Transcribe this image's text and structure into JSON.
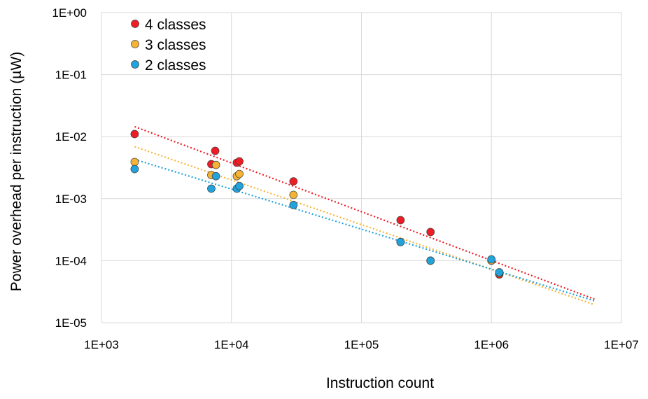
{
  "chart_data": {
    "type": "scatter",
    "title": "",
    "xlabel": "Instruction count",
    "ylabel": "Power overhead per instruction (µW)",
    "xscale": "log",
    "yscale": "log",
    "xlim": [
      1000,
      10000000
    ],
    "ylim": [
      1e-05,
      1
    ],
    "x_ticks": [
      1000,
      10000,
      100000,
      1000000,
      10000000
    ],
    "x_tick_labels": [
      "1E+03",
      "1E+04",
      "1E+05",
      "1E+06",
      "1E+07"
    ],
    "y_ticks": [
      1,
      0.1,
      0.01,
      0.001,
      0.0001,
      1e-05
    ],
    "y_tick_labels": [
      "1E+00",
      "1E-01",
      "1E-02",
      "1E-03",
      "1E-04",
      "1E-05"
    ],
    "grid": true,
    "legend_position": "top-left",
    "series": [
      {
        "name": "4 classes",
        "color": "#ee1c24",
        "points": [
          [
            1800,
            0.011
          ],
          [
            7000,
            0.0036
          ],
          [
            7500,
            0.0059
          ],
          [
            11000,
            0.0038
          ],
          [
            11500,
            0.004
          ],
          [
            30000,
            0.0019
          ],
          [
            200000,
            0.00045
          ],
          [
            340000,
            0.00029
          ],
          [
            1000000,
            0.0001
          ],
          [
            1150000,
            6e-05
          ]
        ],
        "trendline": {
          "type": "power",
          "x_range": [
            1800,
            6200000
          ],
          "y_range": [
            0.0145,
            2.4e-05
          ]
        }
      },
      {
        "name": "3 classes",
        "color": "#f5b335",
        "points": [
          [
            1800,
            0.0039
          ],
          [
            7000,
            0.0024
          ],
          [
            7600,
            0.0035
          ],
          [
            11000,
            0.0023
          ],
          [
            11500,
            0.0025
          ],
          [
            30000,
            0.00115
          ],
          [
            200000,
            0.0002
          ],
          [
            340000,
            0.0001
          ],
          [
            1000000,
            0.0001
          ],
          [
            1150000,
            6.3e-05
          ]
        ],
        "trendline": {
          "type": "power",
          "x_range": [
            1800,
            6200000
          ],
          "y_range": [
            0.0069,
            1.95e-05
          ]
        }
      },
      {
        "name": "2 classes",
        "color": "#21a3dc",
        "points": [
          [
            1800,
            0.003
          ],
          [
            7000,
            0.00145
          ],
          [
            7600,
            0.0023
          ],
          [
            11000,
            0.00145
          ],
          [
            11500,
            0.0016
          ],
          [
            30000,
            0.00079
          ],
          [
            200000,
            0.0002
          ],
          [
            340000,
            0.0001
          ],
          [
            1000000,
            0.000105
          ],
          [
            1150000,
            6.5e-05
          ]
        ],
        "trendline": {
          "type": "power",
          "x_range": [
            1800,
            6200000
          ],
          "y_range": [
            0.0043,
            2.25e-05
          ]
        }
      }
    ]
  },
  "colors": {
    "grid": "#d9d9d9",
    "axis": "#d9d9d9",
    "marker_edge": "#404040"
  }
}
